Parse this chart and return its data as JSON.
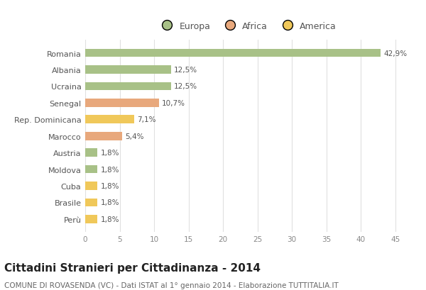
{
  "categories": [
    "Romania",
    "Albania",
    "Ucraina",
    "Senegal",
    "Rep. Dominicana",
    "Marocco",
    "Austria",
    "Moldova",
    "Cuba",
    "Brasile",
    "Perù"
  ],
  "values": [
    42.9,
    12.5,
    12.5,
    10.7,
    7.1,
    5.4,
    1.8,
    1.8,
    1.8,
    1.8,
    1.8
  ],
  "labels": [
    "42,9%",
    "12,5%",
    "12,5%",
    "10,7%",
    "7,1%",
    "5,4%",
    "1,8%",
    "1,8%",
    "1,8%",
    "1,8%",
    "1,8%"
  ],
  "colors": [
    "#a8c187",
    "#a8c187",
    "#a8c187",
    "#e8a87c",
    "#f0c85a",
    "#e8a87c",
    "#a8c187",
    "#a8c187",
    "#f0c85a",
    "#f0c85a",
    "#f0c85a"
  ],
  "legend": [
    {
      "label": "Europa",
      "color": "#a8c187"
    },
    {
      "label": "Africa",
      "color": "#e8a87c"
    },
    {
      "label": "America",
      "color": "#f0c85a"
    }
  ],
  "xlim": [
    0,
    47
  ],
  "xticks": [
    0,
    5,
    10,
    15,
    20,
    25,
    30,
    35,
    40,
    45
  ],
  "title": "Cittadini Stranieri per Cittadinanza - 2014",
  "subtitle": "COMUNE DI ROVASENDA (VC) - Dati ISTAT al 1° gennaio 2014 - Elaborazione TUTTITALIA.IT",
  "title_fontsize": 11,
  "subtitle_fontsize": 7.5,
  "background_color": "#ffffff",
  "grid_color": "#e0e0e0",
  "bar_height": 0.5
}
